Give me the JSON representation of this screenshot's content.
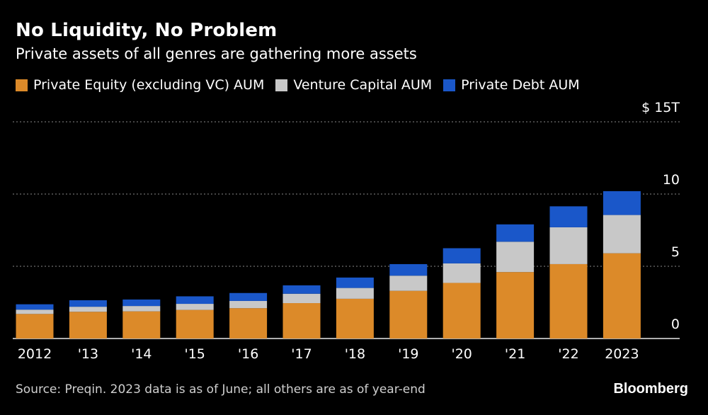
{
  "header": {
    "title": "No Liquidity, No Problem",
    "subtitle": "Private assets of all genres are gathering more assets"
  },
  "legend": [
    {
      "label": "Private Equity (excluding VC) AUM",
      "color": "#dc8a29"
    },
    {
      "label": "Venture Capital AUM",
      "color": "#c8c8c8"
    },
    {
      "label": "Private Debt AUM",
      "color": "#1a57c9"
    }
  ],
  "footer": {
    "source": "Source: Preqin. 2023 data is as of June; all others are as of year-end",
    "brand": "Bloomberg"
  },
  "chart_data": {
    "type": "bar",
    "stacked": true,
    "title": "No Liquidity, No Problem",
    "subtitle": "Private assets of all genres are gathering more assets",
    "categories": [
      "2012",
      "'13",
      "'14",
      "'15",
      "'16",
      "'17",
      "'18",
      "'19",
      "'20",
      "'21",
      "'22",
      "2023"
    ],
    "series": [
      {
        "name": "Private Equity (excluding VC) AUM",
        "color": "#dc8a29",
        "values": [
          1.7,
          1.85,
          1.88,
          1.98,
          2.1,
          2.45,
          2.75,
          3.3,
          3.85,
          4.6,
          5.15,
          5.9
        ]
      },
      {
        "name": "Venture Capital AUM",
        "color": "#c8c8c8",
        "values": [
          0.3,
          0.35,
          0.37,
          0.42,
          0.5,
          0.65,
          0.75,
          1.05,
          1.35,
          2.1,
          2.55,
          2.65
        ]
      },
      {
        "name": "Private Debt AUM",
        "color": "#1a57c9",
        "values": [
          0.37,
          0.45,
          0.45,
          0.52,
          0.55,
          0.58,
          0.72,
          0.8,
          1.05,
          1.2,
          1.45,
          1.65
        ]
      }
    ],
    "yticks": [
      {
        "value": 0,
        "label": "0"
      },
      {
        "value": 5,
        "label": "5"
      },
      {
        "value": 10,
        "label": "10"
      },
      {
        "value": 15,
        "label": "$ 15T"
      }
    ],
    "ylim": [
      0,
      15
    ],
    "grid": true,
    "legend_position": "top-left",
    "xlabel": "",
    "ylabel": ""
  }
}
